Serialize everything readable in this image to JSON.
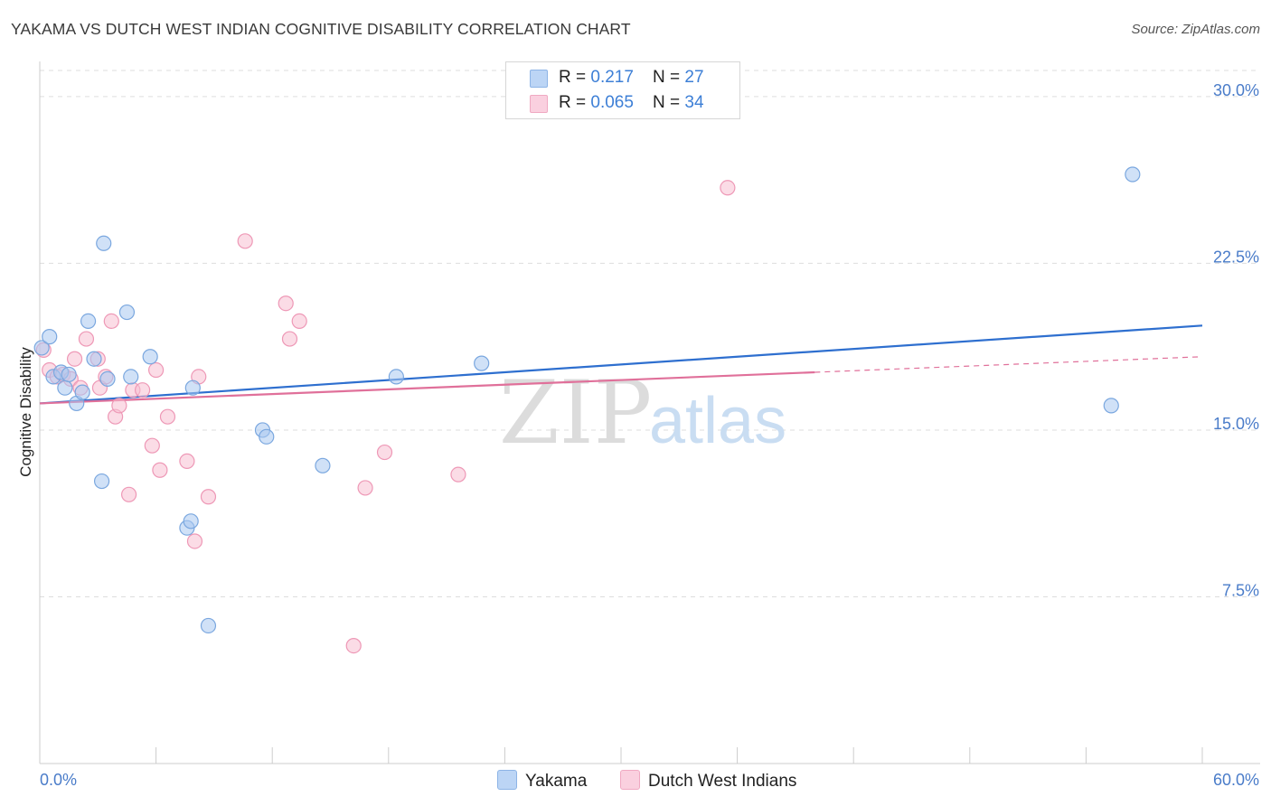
{
  "title": "YAKAMA VS DUTCH WEST INDIAN COGNITIVE DISABILITY CORRELATION CHART",
  "source": "Source: ZipAtlas.com",
  "watermark": {
    "zip": "ZIP",
    "atlas": "atlas"
  },
  "colors": {
    "yakama_fill": "#a9c8f0",
    "yakama_stroke": "#7aa7df",
    "yakama_line": "#2e6fcf",
    "dutch_fill": "#f7c0d2",
    "dutch_stroke": "#ee98b6",
    "dutch_line": "#e0709a",
    "axis_label": "#4a7cc9",
    "grid": "#dddddd"
  },
  "legend": {
    "rows": [
      {
        "r_label": "R = ",
        "r_value": "0.217",
        "n_label": "N = ",
        "n_value": "27"
      },
      {
        "r_label": "R = ",
        "r_value": "0.065",
        "n_label": "N = ",
        "n_value": "34"
      }
    ]
  },
  "chart_data": {
    "type": "scatter",
    "title": "YAKAMA VS DUTCH WEST INDIAN COGNITIVE DISABILITY CORRELATION CHART",
    "xlabel": "",
    "ylabel": "Cognitive Disability",
    "xlim": [
      0,
      60
    ],
    "ylim": [
      0,
      31.5
    ],
    "x_tick_labels": [
      "0.0%",
      "60.0%"
    ],
    "y_ticks": [
      7.5,
      15.0,
      22.5,
      30.0
    ],
    "y_tick_labels": [
      "7.5%",
      "15.0%",
      "22.5%",
      "30.0%"
    ],
    "grid": true,
    "series": [
      {
        "name": "Yakama",
        "points": [
          [
            0.1,
            18.7
          ],
          [
            0.5,
            19.2
          ],
          [
            0.7,
            17.4
          ],
          [
            1.1,
            17.6
          ],
          [
            1.3,
            16.9
          ],
          [
            1.5,
            17.5
          ],
          [
            1.9,
            16.2
          ],
          [
            2.2,
            16.7
          ],
          [
            2.5,
            19.9
          ],
          [
            2.8,
            18.2
          ],
          [
            3.2,
            12.7
          ],
          [
            3.5,
            17.3
          ],
          [
            3.3,
            23.4
          ],
          [
            4.5,
            20.3
          ],
          [
            4.7,
            17.4
          ],
          [
            5.7,
            18.3
          ],
          [
            7.6,
            10.6
          ],
          [
            7.8,
            10.9
          ],
          [
            7.9,
            16.9
          ],
          [
            8.7,
            6.2
          ],
          [
            11.5,
            15.0
          ],
          [
            11.7,
            14.7
          ],
          [
            14.6,
            13.4
          ],
          [
            18.4,
            17.4
          ],
          [
            22.8,
            18.0
          ],
          [
            56.4,
            26.5
          ],
          [
            55.3,
            16.1
          ]
        ],
        "trend": {
          "x": [
            0,
            60
          ],
          "y": [
            16.2,
            19.7
          ]
        }
      },
      {
        "name": "Dutch West Indians",
        "points": [
          [
            0.2,
            18.6
          ],
          [
            0.5,
            17.7
          ],
          [
            0.9,
            17.4
          ],
          [
            1.2,
            17.5
          ],
          [
            1.6,
            17.3
          ],
          [
            1.8,
            18.2
          ],
          [
            2.1,
            16.9
          ],
          [
            2.4,
            19.1
          ],
          [
            3.0,
            18.2
          ],
          [
            3.1,
            16.9
          ],
          [
            3.4,
            17.4
          ],
          [
            3.7,
            19.9
          ],
          [
            3.9,
            15.6
          ],
          [
            4.1,
            16.1
          ],
          [
            4.6,
            12.1
          ],
          [
            4.8,
            16.8
          ],
          [
            5.3,
            16.8
          ],
          [
            5.8,
            14.3
          ],
          [
            6.0,
            17.7
          ],
          [
            6.2,
            13.2
          ],
          [
            6.6,
            15.6
          ],
          [
            7.6,
            13.6
          ],
          [
            8.0,
            10.0
          ],
          [
            8.2,
            17.4
          ],
          [
            8.7,
            12.0
          ],
          [
            10.6,
            23.5
          ],
          [
            12.7,
            20.7
          ],
          [
            12.9,
            19.1
          ],
          [
            13.4,
            19.9
          ],
          [
            16.2,
            5.3
          ],
          [
            16.8,
            12.4
          ],
          [
            17.8,
            14.0
          ],
          [
            21.6,
            13.0
          ],
          [
            35.5,
            25.9
          ]
        ],
        "trend": {
          "x": [
            0,
            40
          ],
          "y": [
            16.2,
            17.6
          ]
        },
        "trend_extension": {
          "x": [
            40,
            60
          ],
          "y": [
            17.6,
            18.3
          ]
        }
      }
    ]
  }
}
